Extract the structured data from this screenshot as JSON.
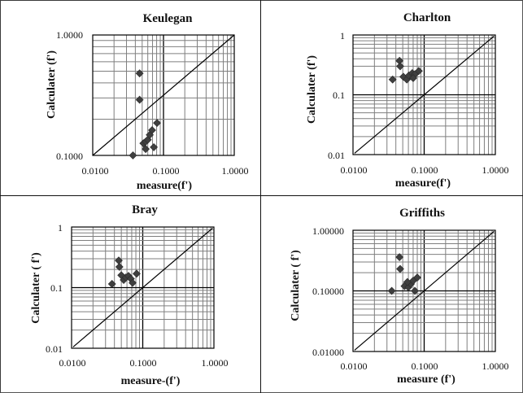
{
  "chart_data": [
    {
      "type": "scatter",
      "title": "Keulegan",
      "xlabel": "measure(f')",
      "ylabel": "Calculater (f')",
      "xscale": "log",
      "yscale": "log",
      "xlim": [
        0.01,
        1
      ],
      "ylim": [
        0.1,
        1
      ],
      "xticks": [
        "0.0100",
        "0.1000",
        "1.0000"
      ],
      "yticks": [
        "0.1000",
        "1.0000"
      ],
      "grid": true,
      "reference_line": "diagonal",
      "marker": "diamond",
      "points": [
        {
          "x": 0.046,
          "y": 0.48
        },
        {
          "x": 0.046,
          "y": 0.29
        },
        {
          "x": 0.037,
          "y": 0.1
        },
        {
          "x": 0.056,
          "y": 0.113
        },
        {
          "x": 0.073,
          "y": 0.117
        },
        {
          "x": 0.052,
          "y": 0.126
        },
        {
          "x": 0.056,
          "y": 0.13
        },
        {
          "x": 0.06,
          "y": 0.135
        },
        {
          "x": 0.064,
          "y": 0.148
        },
        {
          "x": 0.069,
          "y": 0.162
        },
        {
          "x": 0.081,
          "y": 0.186
        }
      ]
    },
    {
      "type": "scatter",
      "title": "Charlton",
      "xlabel": "measure(f')",
      "ylabel": "Calculater (f')",
      "xscale": "log",
      "yscale": "log",
      "xlim": [
        0.01,
        1
      ],
      "ylim": [
        0.01,
        1
      ],
      "xticks": [
        "0.0100",
        "0.1000",
        "1.0000"
      ],
      "yticks": [
        "0.01",
        "0.1",
        "1"
      ],
      "grid": true,
      "reference_line": "y=x",
      "marker": "diamond",
      "points": [
        {
          "x": 0.036,
          "y": 0.18
        },
        {
          "x": 0.045,
          "y": 0.37
        },
        {
          "x": 0.046,
          "y": 0.3
        },
        {
          "x": 0.051,
          "y": 0.2
        },
        {
          "x": 0.057,
          "y": 0.18
        },
        {
          "x": 0.061,
          "y": 0.21
        },
        {
          "x": 0.068,
          "y": 0.23
        },
        {
          "x": 0.074,
          "y": 0.22
        },
        {
          "x": 0.084,
          "y": 0.25
        },
        {
          "x": 0.07,
          "y": 0.19
        }
      ]
    },
    {
      "type": "scatter",
      "title": "Bray",
      "xlabel": "measure-(f')",
      "ylabel": "Calculater ( f')",
      "xscale": "log",
      "yscale": "log",
      "xlim": [
        0.01,
        1
      ],
      "ylim": [
        0.01,
        1
      ],
      "xticks": [
        "0.0100",
        "0.1000",
        "1.0000"
      ],
      "yticks": [
        "0.01",
        "0.1",
        "1"
      ],
      "grid": true,
      "reference_line": "y=x",
      "marker": "diamond",
      "points": [
        {
          "x": 0.037,
          "y": 0.115
        },
        {
          "x": 0.046,
          "y": 0.28
        },
        {
          "x": 0.047,
          "y": 0.22
        },
        {
          "x": 0.05,
          "y": 0.16
        },
        {
          "x": 0.054,
          "y": 0.134
        },
        {
          "x": 0.058,
          "y": 0.147
        },
        {
          "x": 0.063,
          "y": 0.156
        },
        {
          "x": 0.068,
          "y": 0.14
        },
        {
          "x": 0.072,
          "y": 0.12
        },
        {
          "x": 0.082,
          "y": 0.17
        }
      ]
    },
    {
      "type": "scatter",
      "title": "Griffiths",
      "xlabel": "measure (f')",
      "ylabel": "Calculater ( f')",
      "xscale": "log",
      "yscale": "log",
      "xlim": [
        0.01,
        1
      ],
      "ylim": [
        0.01,
        1
      ],
      "xticks": [
        "0.0100",
        "0.1000",
        "1.0000"
      ],
      "yticks": [
        "0.01000",
        "0.10000",
        "1.00000"
      ],
      "grid": true,
      "reference_line": "y=x",
      "marker": "diamond",
      "points": [
        {
          "x": 0.035,
          "y": 0.1
        },
        {
          "x": 0.045,
          "y": 0.36
        },
        {
          "x": 0.046,
          "y": 0.23
        },
        {
          "x": 0.053,
          "y": 0.12
        },
        {
          "x": 0.06,
          "y": 0.115
        },
        {
          "x": 0.065,
          "y": 0.13
        },
        {
          "x": 0.07,
          "y": 0.147
        },
        {
          "x": 0.08,
          "y": 0.166
        },
        {
          "x": 0.074,
          "y": 0.1
        },
        {
          "x": 0.058,
          "y": 0.14
        }
      ]
    }
  ],
  "colors": {
    "marker": "#3f3f3f",
    "grid_minor": "#7f7f7f",
    "grid_major": "#000000",
    "line": "#000000"
  }
}
